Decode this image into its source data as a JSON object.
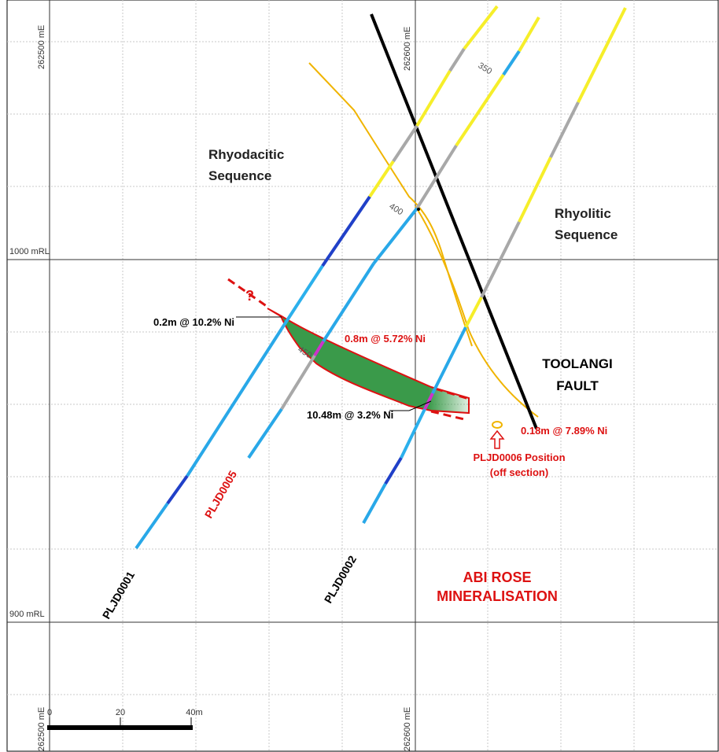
{
  "grid": {
    "easting_labels": [
      "262500 mE",
      "262600 mE"
    ],
    "rl_labels": [
      "1000 mRL",
      "900 mRL"
    ]
  },
  "units": {
    "rhyodacitic": "Rhyodacitic Sequence",
    "rhyolitic": "Rhyolitic Sequence"
  },
  "fault": {
    "line1": "TOOLANGI",
    "line2": "FAULT"
  },
  "mineralisation": {
    "line1": "ABI ROSE",
    "line2": "MINERALISATION"
  },
  "holes": {
    "h1": "PLJD0001",
    "h2": "PLJD0002",
    "h5": "PLJD0005"
  },
  "depth_marks": {
    "d350": "350",
    "d400": "400",
    "d450": "450"
  },
  "intercepts": {
    "i1": "0.2m @ 10.2% Ni",
    "i2": "0.8m @ 5.72% Ni",
    "i3": "10.48m @ 3.2% Ni",
    "i4": "0.18m @ 7.89% Ni"
  },
  "position_note": {
    "line1": "PLJD0006 Position",
    "line2": "(off section)"
  },
  "query_mark": "?",
  "scale_bar": {
    "labels": [
      "0",
      "20",
      "40m"
    ]
  },
  "colors": {
    "fault": "#000000",
    "contact": "#f0b400",
    "lens": "#3a9a4a",
    "lens_outline": "#dd1111",
    "annotation_red": "#dd1111",
    "drill_blue": "#29a8e8",
    "drill_dark_blue": "#2040c8",
    "drill_gray": "#a8a8a8",
    "drill_yellow": "#f6ee2a"
  }
}
